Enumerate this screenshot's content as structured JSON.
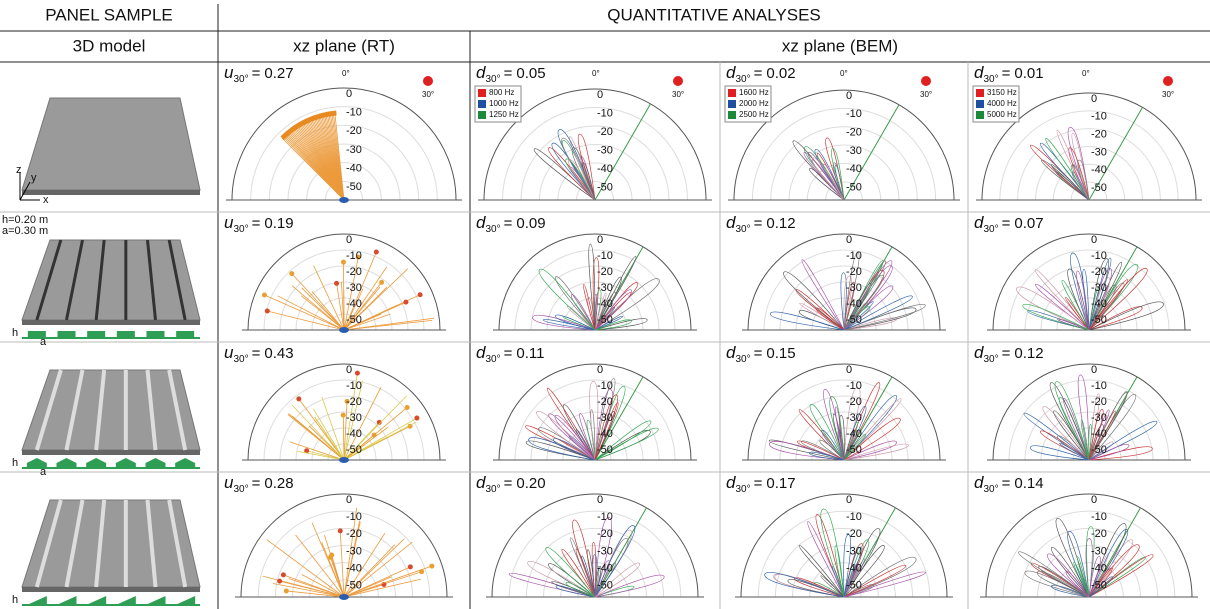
{
  "header": {
    "panel_sample": "PANEL SAMPLE",
    "analyses": "QUANTITATIVE ANALYSES"
  },
  "subheader": {
    "model": "3D model",
    "rt": "xz plane (RT)",
    "bem": "xz plane (BEM)"
  },
  "metric": {
    "rt_symbol": "u",
    "bem_symbol": "d",
    "subscript": "30°",
    "equals": "="
  },
  "polar": {
    "ticks": [
      0,
      -10,
      -20,
      -30,
      -40,
      -50
    ],
    "angles": [
      "0°",
      "30°"
    ]
  },
  "legends": [
    [
      "800 Hz",
      "1000 Hz",
      "1250 Hz"
    ],
    [
      "1600 Hz",
      "2000 Hz",
      "2500 Hz"
    ],
    [
      "3150 Hz",
      "4000 Hz",
      "5000 Hz"
    ]
  ],
  "rows": [
    {
      "axes": [
        "z",
        "y",
        "x"
      ],
      "values": [
        "0.27",
        "0.05",
        "0.02",
        "0.01"
      ]
    },
    {
      "dims": [
        "h=0.20 m",
        "a=0.30 m"
      ],
      "profile": [
        "h",
        "a"
      ],
      "values": [
        "0.19",
        "0.09",
        "0.12",
        "0.07"
      ]
    },
    {
      "profile": [
        "h",
        "a"
      ],
      "values": [
        "0.43",
        "0.11",
        "0.15",
        "0.12"
      ]
    },
    {
      "profile": [
        "h"
      ],
      "values": [
        "0.28",
        "0.20",
        "0.17",
        "0.14"
      ]
    }
  ]
}
